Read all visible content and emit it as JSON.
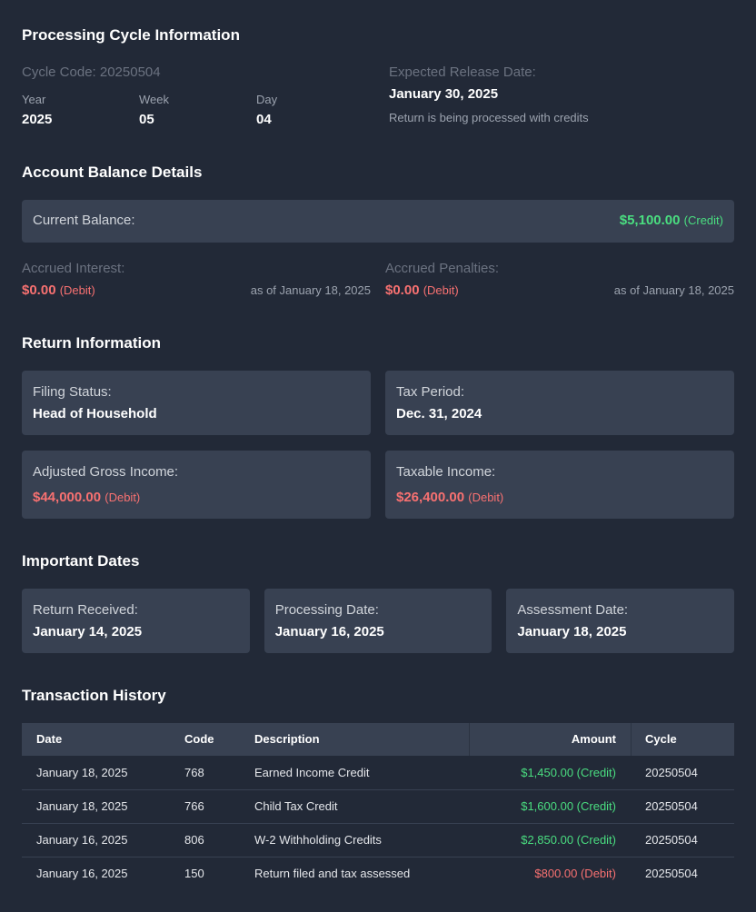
{
  "processing_cycle": {
    "title": "Processing Cycle Information",
    "cycle_code": "Cycle Code: 20250504",
    "fields": [
      {
        "label": "Year",
        "value": "2025"
      },
      {
        "label": "Week",
        "value": "05"
      },
      {
        "label": "Day",
        "value": "04"
      }
    ],
    "release_label": "Expected Release Date:",
    "release_date": "January 30, 2025",
    "release_note": "Return is being processed with credits"
  },
  "account_balance": {
    "title": "Account Balance Details",
    "current_label": "Current Balance:",
    "current_amount": "$5,100.00",
    "current_type": "(Credit)",
    "current_color": "#4ade80",
    "accruals": [
      {
        "label": "Accrued Interest:",
        "amount": "$0.00",
        "type": "(Debit)",
        "color": "#f87171",
        "as_of": "as of January 18, 2025"
      },
      {
        "label": "Accrued Penalties:",
        "amount": "$0.00",
        "type": "(Debit)",
        "color": "#f87171",
        "as_of": "as of January 18, 2025"
      }
    ]
  },
  "return_information": {
    "title": "Return Information",
    "items": [
      {
        "label": "Filing Status:",
        "value": "Head of Household"
      },
      {
        "label": "Tax Period:",
        "value": "Dec. 31, 2024"
      },
      {
        "label": "Adjusted Gross Income:",
        "amount": "$44,000.00",
        "type": "(Debit)",
        "color": "#f87171"
      },
      {
        "label": "Taxable Income:",
        "amount": "$26,400.00",
        "type": "(Debit)",
        "color": "#f87171"
      }
    ]
  },
  "important_dates": {
    "title": "Important Dates",
    "items": [
      {
        "label": "Return Received:",
        "value": "January 14, 2025"
      },
      {
        "label": "Processing Date:",
        "value": "January 16, 2025"
      },
      {
        "label": "Assessment Date:",
        "value": "January 18, 2025"
      }
    ]
  },
  "transaction_history": {
    "title": "Transaction History",
    "table": {
      "columns": [
        "Date",
        "Code",
        "Description",
        "Amount",
        "Cycle"
      ],
      "rows": [
        [
          "January 18, 2025",
          "768",
          "Earned Income Credit",
          "$1,450.00 (Credit)",
          "20250504"
        ],
        [
          "January 18, 2025",
          "766",
          "Child Tax Credit",
          "$1,600.00 (Credit)",
          "20250504"
        ],
        [
          "January 16, 2025",
          "806",
          "W-2 Withholding Credits",
          "$2,850.00 (Credit)",
          "20250504"
        ],
        [
          "January 16, 2025",
          "150",
          "Return filed and tax assessed",
          "$800.00 (Debit)",
          "20250504"
        ]
      ],
      "amount_colors": [
        "#4ade80",
        "#4ade80",
        "#4ade80",
        "#f87171"
      ]
    }
  }
}
